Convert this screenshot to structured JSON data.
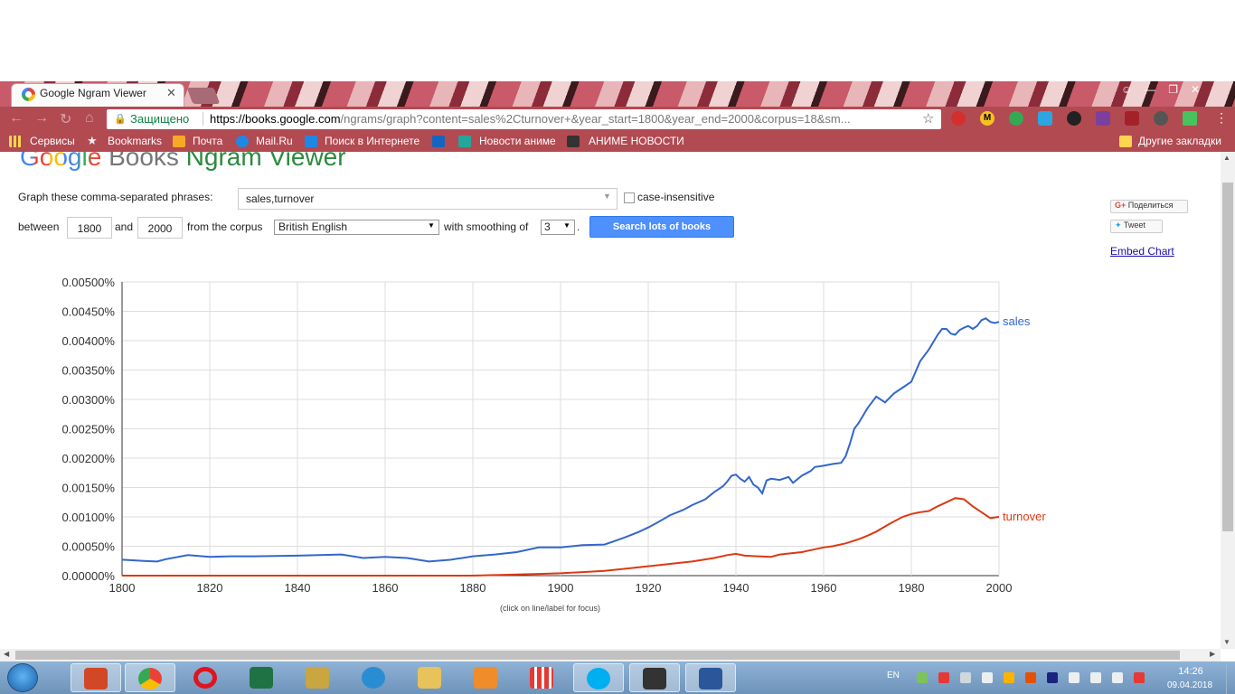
{
  "browser": {
    "tab_title": "Google Ngram Viewer",
    "tab_close": "✕",
    "secure_label": "Защищено",
    "url_host": "https://books.google.com",
    "url_path": "/ngrams/graph?content=sales%2Cturnover+&year_start=1800&year_end=2000&corpus=18&sm...",
    "bookmarks": [
      "Сервисы",
      "Bookmarks",
      "Почта",
      "Mail.Ru",
      "Поиск в Интернете",
      "Новости аниме",
      "АНИМЕ НОВОСТИ"
    ],
    "other_bookmarks": "Другие закладки"
  },
  "header": {
    "logo_google": "Google",
    "logo_books": "Books",
    "logo_ngram": "Ngram Viewer"
  },
  "form": {
    "phrases_label": "Graph these comma-separated phrases:",
    "phrases_value": "sales,turnover",
    "case_insensitive": "case-insensitive",
    "between": "between",
    "year_start": "1800",
    "and": "and",
    "year_end": "2000",
    "from_corpus": "from the corpus",
    "corpus": "British English",
    "with_smoothing": "with smoothing of",
    "smoothing": "3",
    "search_button": "Search lots of books"
  },
  "share": {
    "share_label": "Поделиться",
    "tweet_label": "Tweet",
    "embed_label": "Embed Chart"
  },
  "chart_data": {
    "type": "line",
    "xlim": [
      1800,
      2000
    ],
    "ylim": [
      0,
      0.005
    ],
    "x_ticks": [
      "1800",
      "1820",
      "1840",
      "1860",
      "1880",
      "1900",
      "1920",
      "1940",
      "1960",
      "1980",
      "2000"
    ],
    "y_ticks": [
      "0.00000%",
      "0.00050%",
      "0.00100%",
      "0.00150%",
      "0.00200%",
      "0.00250%",
      "0.00300%",
      "0.00350%",
      "0.00400%",
      "0.00450%",
      "0.00500%"
    ],
    "grid": true,
    "note": "(click on line/label for focus)",
    "series": [
      {
        "name": "sales",
        "color": "#3366cc",
        "x": [
          1800,
          1805,
          1808,
          1810,
          1815,
          1820,
          1825,
          1830,
          1840,
          1850,
          1855,
          1860,
          1865,
          1870,
          1875,
          1880,
          1885,
          1890,
          1895,
          1900,
          1905,
          1910,
          1912,
          1915,
          1918,
          1920,
          1922,
          1925,
          1928,
          1930,
          1933,
          1935,
          1937,
          1938,
          1939,
          1940,
          1941,
          1942,
          1943,
          1944,
          1945,
          1946,
          1947,
          1948,
          1950,
          1952,
          1953,
          1955,
          1957,
          1958,
          1960,
          1962,
          1964,
          1965,
          1966,
          1967,
          1968,
          1970,
          1972,
          1974,
          1976,
          1978,
          1980,
          1982,
          1984,
          1986,
          1987,
          1988,
          1989,
          1990,
          1991,
          1992,
          1993,
          1994,
          1995,
          1996,
          1997,
          1998,
          1999,
          2000
        ],
        "values": [
          0.00027,
          0.00025,
          0.00024,
          0.00028,
          0.00035,
          0.00032,
          0.00033,
          0.00033,
          0.00034,
          0.00036,
          0.0003,
          0.00032,
          0.0003,
          0.00024,
          0.00027,
          0.00033,
          0.00036,
          0.0004,
          0.00048,
          0.00048,
          0.00052,
          0.00053,
          0.00058,
          0.00066,
          0.00075,
          0.00082,
          0.0009,
          0.00103,
          0.00112,
          0.0012,
          0.0013,
          0.00142,
          0.00152,
          0.0016,
          0.0017,
          0.00172,
          0.00165,
          0.0016,
          0.00168,
          0.00155,
          0.0015,
          0.0014,
          0.00162,
          0.00165,
          0.00163,
          0.00168,
          0.00158,
          0.0017,
          0.00178,
          0.00185,
          0.00187,
          0.0019,
          0.00192,
          0.00203,
          0.00225,
          0.0025,
          0.0026,
          0.00285,
          0.00305,
          0.00295,
          0.0031,
          0.0032,
          0.0033,
          0.00365,
          0.00385,
          0.0041,
          0.0042,
          0.0042,
          0.00412,
          0.0041,
          0.00418,
          0.00422,
          0.00425,
          0.0042,
          0.00425,
          0.00435,
          0.00438,
          0.00432,
          0.0043,
          0.00432
        ]
      },
      {
        "name": "turnover",
        "color": "#dc3912",
        "x": [
          1800,
          1860,
          1880,
          1890,
          1895,
          1900,
          1905,
          1910,
          1915,
          1920,
          1925,
          1930,
          1935,
          1938,
          1940,
          1942,
          1945,
          1948,
          1950,
          1955,
          1958,
          1960,
          1962,
          1965,
          1968,
          1970,
          1972,
          1975,
          1978,
          1980,
          1982,
          1984,
          1986,
          1988,
          1990,
          1992,
          1994,
          1996,
          1998,
          2000
        ],
        "values": [
          0,
          0,
          0.0,
          2e-05,
          3e-05,
          4e-05,
          6e-05,
          8e-05,
          0.00012,
          0.00016,
          0.0002,
          0.00024,
          0.0003,
          0.00035,
          0.00037,
          0.00034,
          0.00033,
          0.00032,
          0.00036,
          0.0004,
          0.00045,
          0.00048,
          0.0005,
          0.00055,
          0.00062,
          0.00068,
          0.00075,
          0.00088,
          0.001,
          0.00105,
          0.00108,
          0.0011,
          0.00118,
          0.00125,
          0.00132,
          0.0013,
          0.00118,
          0.00108,
          0.00098,
          0.001
        ]
      }
    ]
  },
  "taskbar": {
    "lang": "EN",
    "time": "14:26",
    "date": "09.04.2018"
  }
}
